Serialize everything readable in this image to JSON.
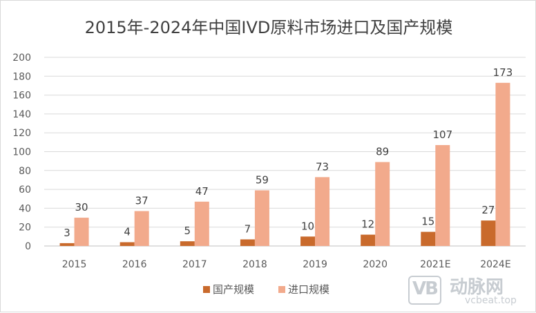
{
  "chart_data": {
    "type": "bar",
    "title": "2015年-2024年中国IVD原料市场进口及国产规模",
    "categories": [
      "2015",
      "2016",
      "2017",
      "2018",
      "2019",
      "2020",
      "2021E",
      "2024E"
    ],
    "series": [
      {
        "name": "国产规模",
        "color": "#c96a2c",
        "values": [
          3,
          4,
          5,
          7,
          10,
          12,
          15,
          27
        ]
      },
      {
        "name": "进口规模",
        "color": "#f2aa8c",
        "values": [
          30,
          37,
          47,
          59,
          73,
          89,
          107,
          173
        ]
      }
    ],
    "yticks": [
      "0",
      "20",
      "40",
      "60",
      "80",
      "100",
      "120",
      "140",
      "160",
      "180",
      "200"
    ],
    "ylim": [
      0,
      200
    ],
    "grid": true,
    "legend": "bottom-center"
  },
  "watermark": {
    "logo_text": "VB",
    "brand": "动脉网",
    "site": "vcbeat.top"
  }
}
